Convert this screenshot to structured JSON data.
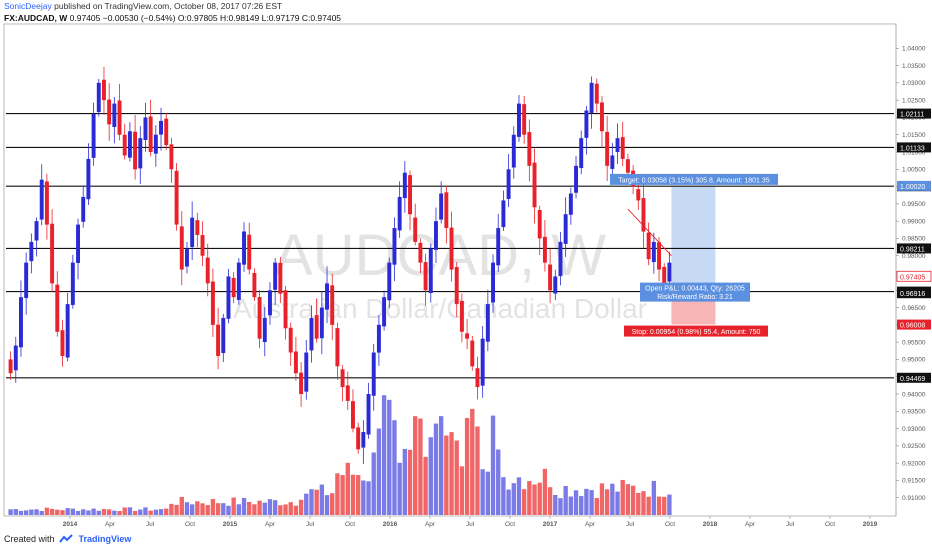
{
  "header": {
    "author": "SonicDeejay",
    "published": "published on TradingView.com, October 08, 2017 07:26 EST"
  },
  "symbol_line": {
    "symbol": "FX:AUDCAD, W",
    "last": "0.97405",
    "change": "−0.00530 (−0.54%)",
    "open": "O:0.97805",
    "high": "H:0.98149",
    "low": "L:0.97179",
    "close": "C:0.97405"
  },
  "watermark": {
    "main": "AUDCAD, W",
    "sub": "Australian Dollar/Canadian Dollar"
  },
  "footer": {
    "created_with": "Created with",
    "brand": "TradingView"
  },
  "colors": {
    "up": "#2b2bd6",
    "down": "#e8222b",
    "vol_up": "#7b7be8",
    "vol_down": "#f06565",
    "target_zone": "#bcd3f5",
    "stop_zone": "#f7a8a8",
    "label_blue": "#5b8fe0",
    "label_red": "#e8222b"
  },
  "chart_data": {
    "type": "candlestick",
    "instrument": "FX:AUDCAD",
    "timeframe": "W",
    "y_axis": {
      "range": [
        0.905,
        1.045
      ],
      "ticks": [
        "1.04000",
        "1.03500",
        "1.03000",
        "1.02500",
        "1.02000",
        "1.01500",
        "1.01000",
        "1.00500",
        "1.00000",
        "0.99500",
        "0.99000",
        "0.98500",
        "0.98000",
        "0.97500",
        "0.97000",
        "0.96500",
        "0.96000",
        "0.95500",
        "0.95000",
        "0.94500",
        "0.94000",
        "0.93500",
        "0.93000",
        "0.92500",
        "0.92000",
        "0.91500",
        "0.91000"
      ]
    },
    "x_axis": {
      "ticks": [
        "2014",
        "Apr",
        "Jul",
        "Oct",
        "2015",
        "Apr",
        "Jul",
        "Oct",
        "2016",
        "Apr",
        "Jul",
        "Oct",
        "2017",
        "Apr",
        "Jul",
        "Oct",
        "2018",
        "Apr",
        "Jul",
        "Oct",
        "2019"
      ]
    },
    "horizontal_levels": [
      {
        "value": 1.02111,
        "label": "1.02111"
      },
      {
        "value": 1.01133,
        "label": "1.01133"
      },
      {
        "value": 1.0001,
        "label": "1.00010"
      },
      {
        "value": 0.98211,
        "label": "0.98211"
      },
      {
        "value": 0.96962,
        "label": "0.96962"
      },
      {
        "value": 0.94469,
        "label": "0.94469"
      }
    ],
    "price_labels": [
      {
        "value": 1.0002,
        "label": "1.00020",
        "kind": "target"
      },
      {
        "value": 0.97405,
        "label": "0.97405",
        "kind": "last"
      },
      {
        "value": 0.96916,
        "label": "0.96916",
        "kind": "neutral"
      },
      {
        "value": 0.96008,
        "label": "0.96008",
        "kind": "stop"
      }
    ],
    "position": {
      "entry": 0.96962,
      "target": 1.0002,
      "stop": 0.96008,
      "target_text": "Target: 0.03058 (3.15%) 305.8, Amount: 1801.35",
      "pnl_text": "Open P&L: 0.00443, Qty: 26205",
      "rr_text": "Risk/Reward Ratio: 3.21",
      "stop_text": "Stop: 0.00954 (0.98%) 95.4, Amount: 750"
    },
    "close_path": [
      0.946,
      0.954,
      0.968,
      0.978,
      0.984,
      0.99,
      1.002,
      0.989,
      0.972,
      0.958,
      0.951,
      0.966,
      0.978,
      0.989,
      0.997,
      1.008,
      1.021,
      1.03,
      1.025,
      1.018,
      1.024,
      1.015,
      1.009,
      1.016,
      1.005,
      1.014,
      1.02,
      1.01,
      1.015,
      1.019,
      1.012,
      1.005,
      0.989,
      0.976,
      0.982,
      0.991,
      0.986,
      0.98,
      0.972,
      0.96,
      0.951,
      0.962,
      0.974,
      0.968,
      0.978,
      0.987,
      0.976,
      0.968,
      0.956,
      0.962,
      0.97,
      0.978,
      0.969,
      0.959,
      0.952,
      0.946,
      0.94,
      0.952,
      0.962,
      0.956,
      0.965,
      0.972,
      0.96,
      0.948,
      0.942,
      0.938,
      0.93,
      0.924,
      0.929,
      0.94,
      0.952,
      0.96,
      0.968,
      0.978,
      0.988,
      0.997,
      1.004,
      0.992,
      0.984,
      0.978,
      0.97,
      0.982,
      0.99,
      0.998,
      0.988,
      0.976,
      0.966,
      0.958,
      0.956,
      0.948,
      0.942,
      0.956,
      0.966,
      0.978,
      0.988,
      0.996,
      1.005,
      1.015,
      1.024,
      1.015,
      1.006,
      0.994,
      0.985,
      0.978,
      0.97,
      0.974,
      0.984,
      0.992,
      0.998,
      1.006,
      1.014,
      1.022,
      1.03,
      1.024,
      1.016,
      1.006,
      1.009,
      1.014,
      1.008,
      1.004,
      1.0,
      0.996,
      0.987,
      0.979,
      0.984,
      0.976,
      0.972,
      0.978
    ]
  }
}
